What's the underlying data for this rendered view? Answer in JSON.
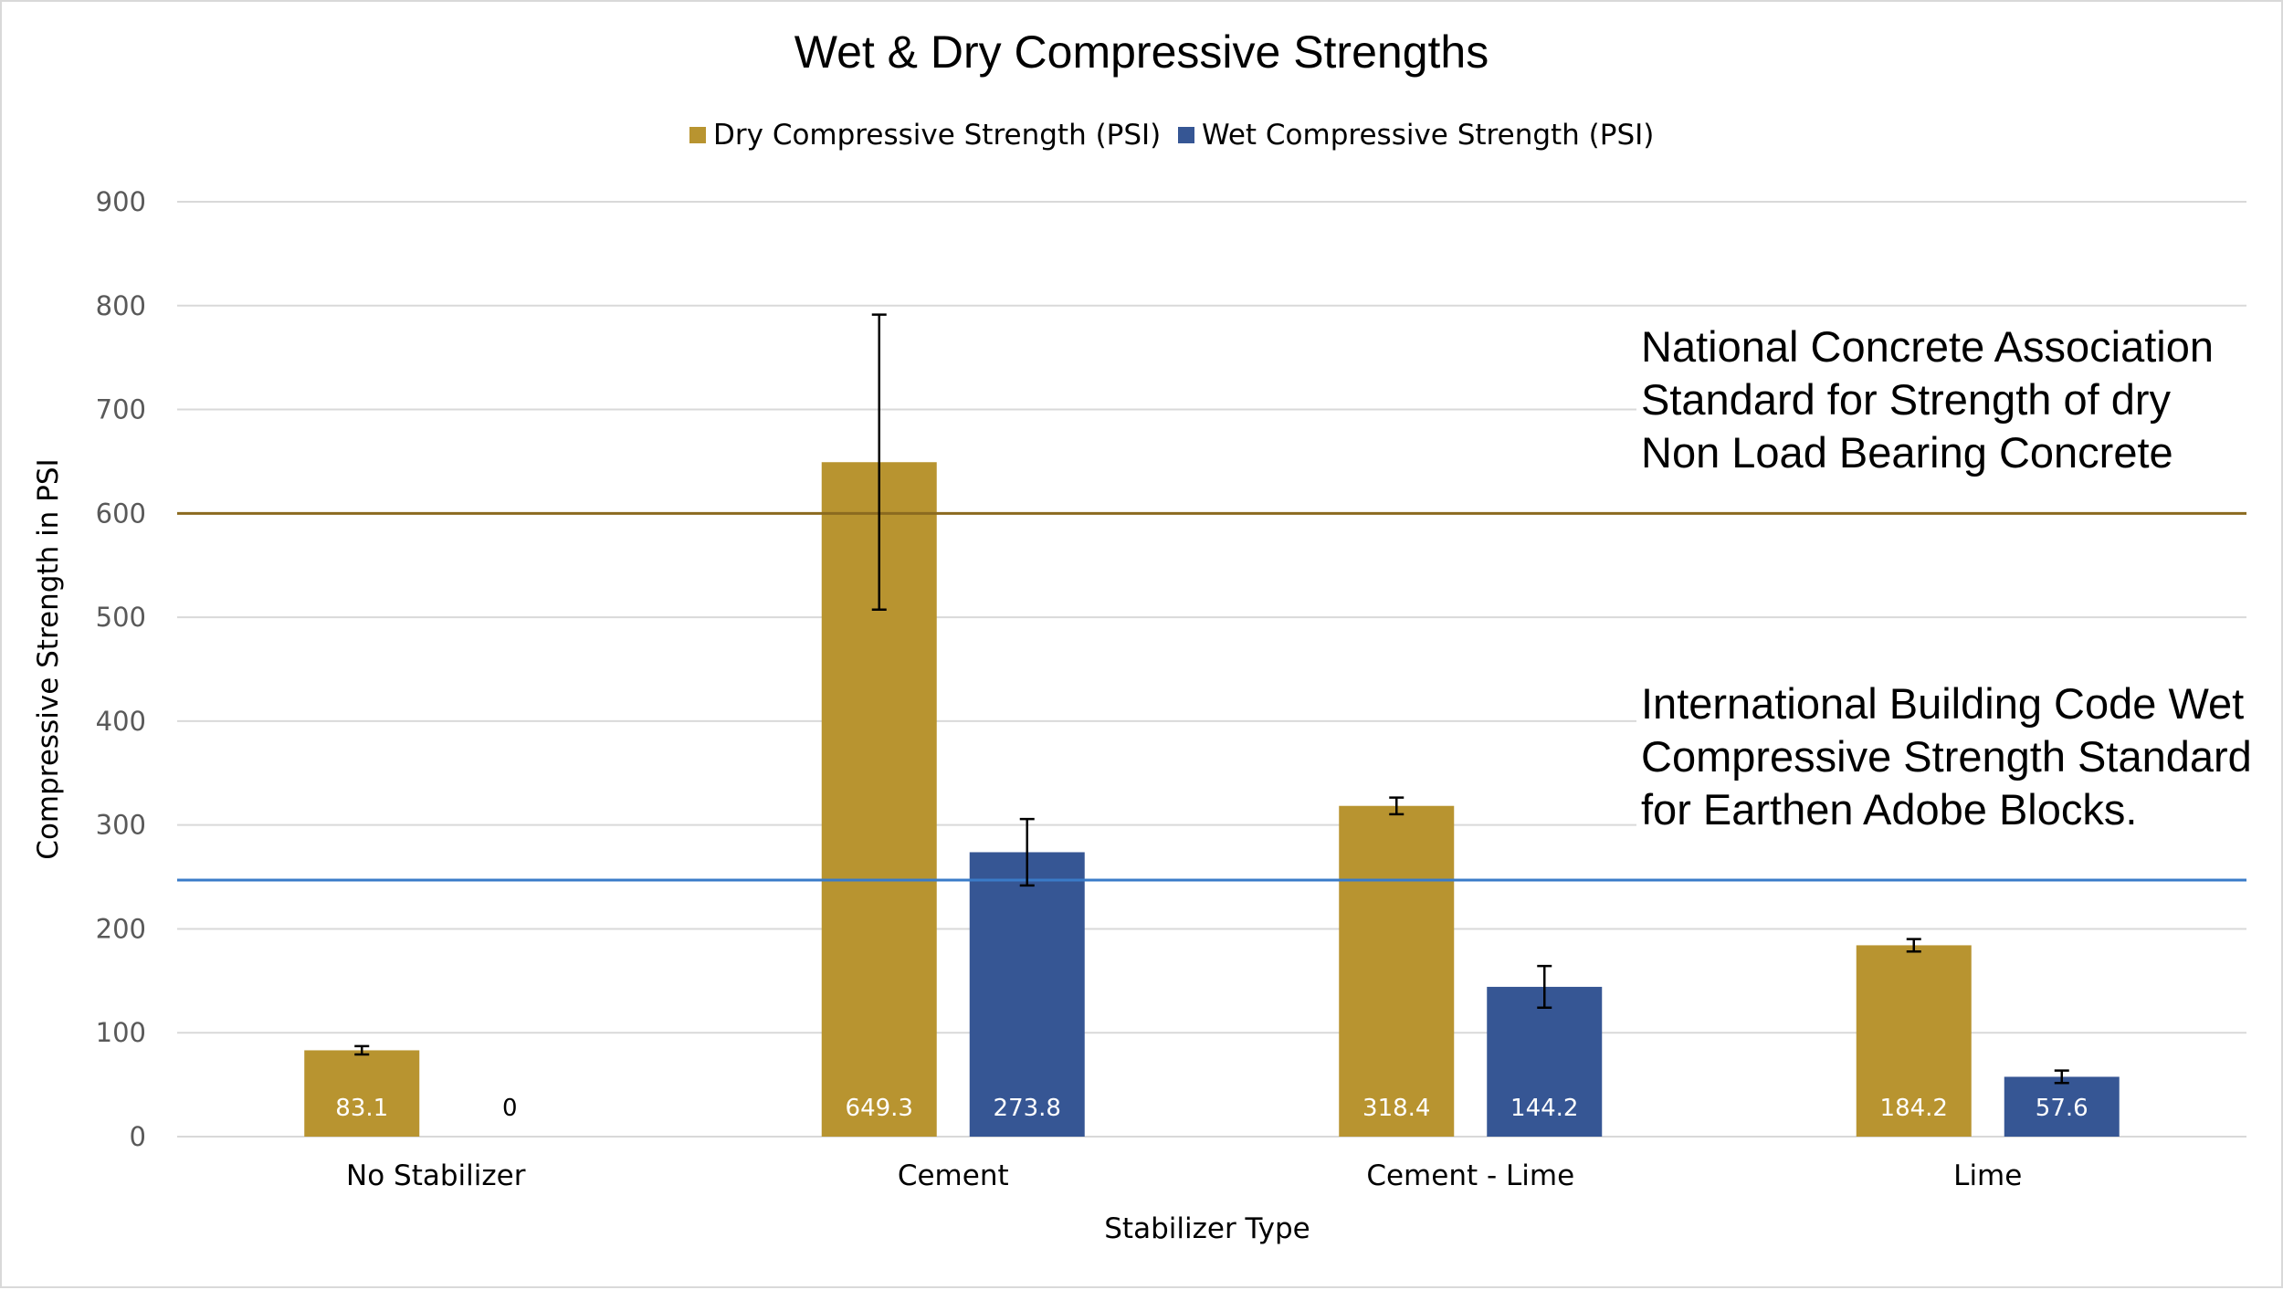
{
  "chart_data": {
    "type": "bar",
    "title": "Wet & Dry Compressive Strengths",
    "xlabel": "Stabilizer Type",
    "ylabel": "Compressive Strength in PSI",
    "categories": [
      "No Stabilizer",
      "Cement",
      "Cement - Lime",
      "Lime"
    ],
    "ylim": [
      0,
      900
    ],
    "yticks": [
      0,
      100,
      200,
      300,
      400,
      500,
      600,
      700,
      800,
      900
    ],
    "grid": true,
    "legend_position": "top",
    "series": [
      {
        "name": "Dry Compressive Strength (PSI)",
        "color": "#b89430",
        "values": [
          83.1,
          649.3,
          318.4,
          184.2
        ],
        "labels": [
          "83.1",
          "649.3",
          "318.4",
          "184.2"
        ],
        "error": [
          4,
          142,
          8,
          6
        ]
      },
      {
        "name": "Wet Compressive Strength (PSI)",
        "color": "#365694",
        "values": [
          0,
          273.8,
          144.2,
          57.6
        ],
        "labels": [
          "0",
          "273.8",
          "144.2",
          "57.6"
        ],
        "error": [
          null,
          32,
          20,
          6
        ]
      }
    ],
    "reference_lines": [
      {
        "value": 600,
        "color": "#8b6a1f",
        "label_lines": [
          "National Concrete Association",
          "Standard for Strength of dry",
          "Non Load Bearing Concrete"
        ]
      },
      {
        "value": 247,
        "color": "#3a7bc8",
        "label_lines": [
          "International Building Code Wet",
          "Compressive Strength Standard",
          "for Earthen Adobe Blocks."
        ]
      }
    ]
  }
}
